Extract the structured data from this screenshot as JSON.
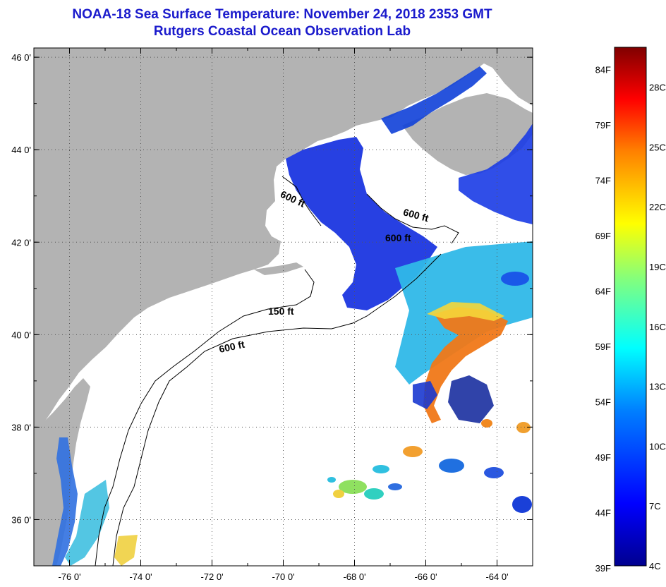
{
  "header": {
    "title": "NOAA-18 Sea Surface Temperature:  November 24, 2018 2353 GMT",
    "subtitle": "Rutgers Coastal Ocean Observation Lab"
  },
  "map": {
    "lat_labels": [
      "46 0'",
      "44 0'",
      "42 0'",
      "40 0'",
      "38 0'",
      "36 0'"
    ],
    "lon_labels": [
      "-76 0'",
      "-74 0'",
      "-72 0'",
      "-70 0'",
      "-68 0'",
      "-66 0'",
      "-64 0'"
    ],
    "lat_range": [
      35,
      46.2
    ],
    "lon_range": [
      -77,
      -63
    ],
    "land_color": "#b3b3b3",
    "cloud_color": "#ffffff",
    "grid": "dotted",
    "contours": [
      {
        "label": "600 ft"
      },
      {
        "label": "600 ft"
      },
      {
        "label": "600 ft"
      },
      {
        "label": "150 ft"
      },
      {
        "label": "600 ft"
      }
    ]
  },
  "colorbar": {
    "fahrenheit_labels": [
      "84F",
      "79F",
      "74F",
      "69F",
      "64F",
      "59F",
      "54F",
      "49F",
      "44F",
      "39F"
    ],
    "celsius_labels": [
      "28C",
      "25C",
      "22C",
      "19C",
      "16C",
      "13C",
      "10C",
      "7C",
      "4C"
    ],
    "range_c": [
      4,
      30
    ],
    "colors": [
      "#00008f",
      "#0000ff",
      "#0080ff",
      "#00ffff",
      "#80ff80",
      "#ffff00",
      "#ff8000",
      "#ff0000",
      "#800000"
    ]
  }
}
